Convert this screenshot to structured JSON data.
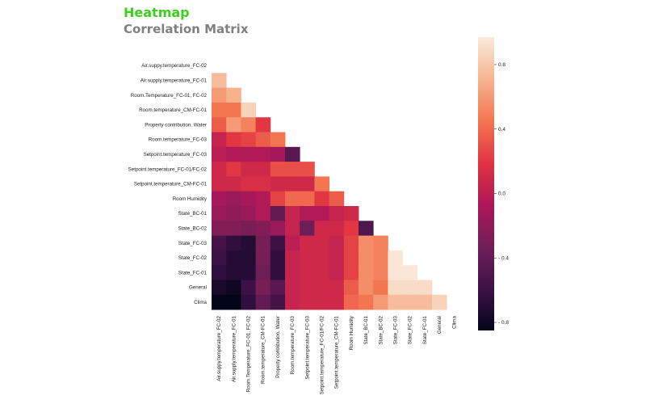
{
  "header": {
    "title": "Heatmap",
    "subtitle": "Correlation Matrix"
  },
  "colors": {
    "title": "#3ccf1d",
    "subtitle": "#808080",
    "colormap": [
      "#03051a",
      "#3e1147",
      "#701f57",
      "#ad1759",
      "#e13342",
      "#f37651",
      "#f6b48f",
      "#faebdd"
    ]
  },
  "chart_data": {
    "type": "heatmap",
    "mask": "upper-triangle",
    "labels": [
      "Air.suppy.temperature_FC-02",
      "Air.supply.temperature_FC-01",
      "Room.Temperature_FC-01, FC-02",
      "Room.temperature_CM-FC-01",
      "Property contribution. Water",
      "Room.temperature_FC-03",
      "Setpoint.temperature_FC-03",
      "Setpoint.temperature_FC-01/FC-02",
      "Setpoint.temperature_CM-FC-01",
      "Room Humidity",
      "State_BC-01",
      "State_BC-02",
      "State_FC-03",
      "State_FC-02",
      "State_FC-01",
      "General",
      "Clima"
    ],
    "matrix": [
      [],
      [
        0.75
      ],
      [
        0.6,
        0.7
      ],
      [
        0.45,
        0.45,
        0.85
      ],
      [
        0.35,
        0.6,
        0.5,
        0.2
      ],
      [
        0.05,
        0.2,
        0.25,
        0.35,
        0.45
      ],
      [
        0.0,
        -0.05,
        -0.05,
        -0.05,
        -0.1,
        -0.45
      ],
      [
        0.1,
        0.2,
        0.1,
        0.1,
        0.3,
        0.3,
        0.3
      ],
      [
        0.1,
        0.1,
        0.15,
        0.15,
        0.1,
        0.1,
        0.1,
        0.45
      ],
      [
        -0.1,
        -0.15,
        -0.1,
        -0.05,
        0.25,
        0.4,
        0.4,
        0.2,
        0.35
      ],
      [
        -0.15,
        -0.2,
        -0.15,
        -0.05,
        -0.4,
        0.05,
        -0.05,
        -0.05,
        0.05,
        0.1
      ],
      [
        -0.25,
        -0.25,
        -0.3,
        -0.25,
        -0.15,
        0.05,
        -0.35,
        0.1,
        0.1,
        0.2,
        -0.5
      ],
      [
        -0.55,
        -0.65,
        -0.7,
        -0.3,
        -0.6,
        0.0,
        0.1,
        0.1,
        0.05,
        0.25,
        0.55,
        0.5
      ],
      [
        -0.6,
        -0.7,
        -0.7,
        -0.3,
        -0.65,
        0.05,
        0.1,
        0.1,
        0.05,
        0.25,
        0.55,
        0.5,
        0.95
      ],
      [
        -0.65,
        -0.7,
        -0.7,
        -0.35,
        -0.65,
        0.05,
        0.1,
        0.1,
        0.05,
        0.25,
        0.55,
        0.5,
        0.95,
        0.95
      ],
      [
        -0.75,
        -0.8,
        -0.6,
        -0.3,
        -0.45,
        0.05,
        0.1,
        0.1,
        0.1,
        0.35,
        0.55,
        0.45,
        0.9,
        0.9,
        0.9
      ],
      [
        -0.85,
        -0.9,
        -0.65,
        -0.4,
        -0.55,
        0.05,
        0.1,
        0.1,
        0.1,
        0.4,
        0.45,
        0.6,
        0.75,
        0.75,
        0.75,
        0.85
      ]
    ],
    "colorbar": {
      "ticks": [
        0.8,
        0.4,
        0.0,
        -0.4,
        -0.8
      ],
      "tick_labels": [
        "0.8",
        "0.4",
        "0.0",
        "- 0.4",
        "- 0.8"
      ],
      "range": [
        -0.85,
        0.97
      ]
    }
  }
}
